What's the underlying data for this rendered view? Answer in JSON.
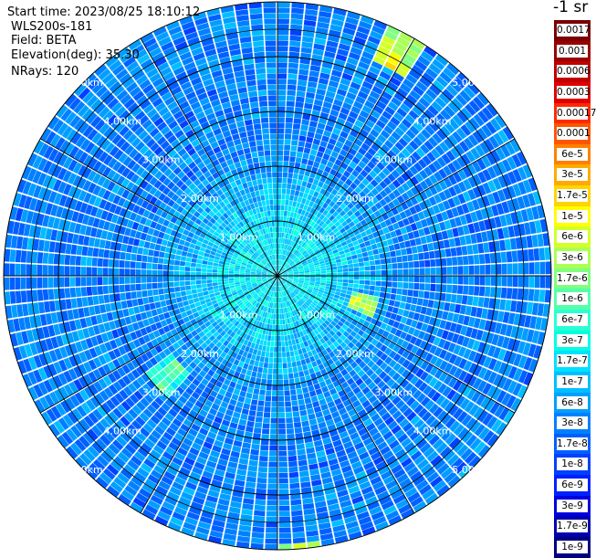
{
  "header": {
    "start_time": "Start time: 2023/08/25 18:10:12",
    "instrument": "WLS200s-181",
    "field": "Field: BETA",
    "elevation": "Elevation(deg): 35.30",
    "nrays": "NRays: 120"
  },
  "colorbar": {
    "unit": "-1 sr",
    "entries": [
      {
        "label": "0.0017",
        "color": "#7a0000"
      },
      {
        "label": "0.001",
        "color": "#9b0000"
      },
      {
        "label": "0.0006",
        "color": "#c00000"
      },
      {
        "label": "0.0003",
        "color": "#e00000"
      },
      {
        "label": "0.00017",
        "color": "#ff2a00"
      },
      {
        "label": "0.0001",
        "color": "#ff5500"
      },
      {
        "label": "6e-5",
        "color": "#ff8000"
      },
      {
        "label": "3e-5",
        "color": "#ffaa00"
      },
      {
        "label": "1.7e-5",
        "color": "#ffd400"
      },
      {
        "label": "1e-5",
        "color": "#ffff00"
      },
      {
        "label": "6e-6",
        "color": "#d4ff2a"
      },
      {
        "label": "3e-6",
        "color": "#aaff55"
      },
      {
        "label": "1.7e-6",
        "color": "#80ff80"
      },
      {
        "label": "1e-6",
        "color": "#55ffaa"
      },
      {
        "label": "6e-7",
        "color": "#2affd4"
      },
      {
        "label": "3e-7",
        "color": "#00ffe0"
      },
      {
        "label": "1.7e-7",
        "color": "#00e0ff"
      },
      {
        "label": "1e-7",
        "color": "#00bfff"
      },
      {
        "label": "6e-8",
        "color": "#009fff"
      },
      {
        "label": "3e-8",
        "color": "#0080ff"
      },
      {
        "label": "1.7e-8",
        "color": "#0060ff"
      },
      {
        "label": "1e-8",
        "color": "#0040ff"
      },
      {
        "label": "6e-9",
        "color": "#0020ff"
      },
      {
        "label": "3e-9",
        "color": "#0000e0"
      },
      {
        "label": "1.7e-9",
        "color": "#0000b0"
      },
      {
        "label": "1e-9",
        "color": "#000080"
      }
    ]
  },
  "chart_data": {
    "type": "heatmap",
    "projection": "polar (PPI scan)",
    "range_unit": "km",
    "range_max": 5.0,
    "nrays": 120,
    "range_rings": [
      {
        "value": 1.0,
        "label": "1.00km"
      },
      {
        "value": 2.0,
        "label": "2.00km"
      },
      {
        "value": 3.0,
        "label": "3.00km"
      },
      {
        "value": 4.0,
        "label": "4.00km"
      },
      {
        "value": 5.0,
        "label": "5.00km"
      }
    ],
    "ring_label_azimuths_deg": [
      45,
      135,
      225,
      315
    ],
    "spoke_azimuths_deg": [
      0,
      30,
      60,
      90,
      120,
      150,
      180,
      210,
      240,
      270,
      300,
      330
    ],
    "color_scale": "log",
    "background_level": "3e-8",
    "near_range_level": "1.7e-7",
    "hotspots": [
      {
        "azimuth_deg": 28,
        "range_km": [
          4.3,
          5.0
        ],
        "level": "1e-5"
      },
      {
        "azimuth_deg": 108,
        "range_km": [
          1.5,
          1.9
        ],
        "level": "1e-5"
      },
      {
        "azimuth_deg": 175,
        "range_km": [
          4.9,
          5.0
        ],
        "level": "1e-5"
      },
      {
        "azimuth_deg": 228,
        "range_km": [
          2.5,
          3.0
        ],
        "level": "1.7e-6"
      }
    ]
  }
}
